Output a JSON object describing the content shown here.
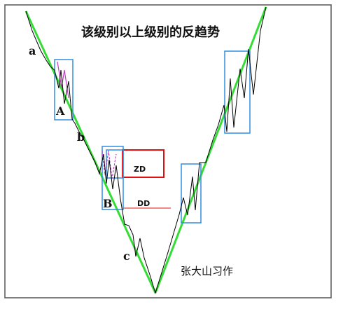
{
  "title": "该级别以上级别的反趋势",
  "author": "张大山习作",
  "labels": {
    "a": "a",
    "A": "A",
    "b": "b",
    "B": "B",
    "c": "c",
    "zd": "ZD",
    "dd": "DD"
  },
  "colors": {
    "trend_line": "#33dd33",
    "price_line": "#000000",
    "center_box": "#2f8fe0",
    "zd_box": "#e01010",
    "dd_line": "#e01010",
    "sub_move": "#c040c0",
    "frame": "#555555"
  }
}
